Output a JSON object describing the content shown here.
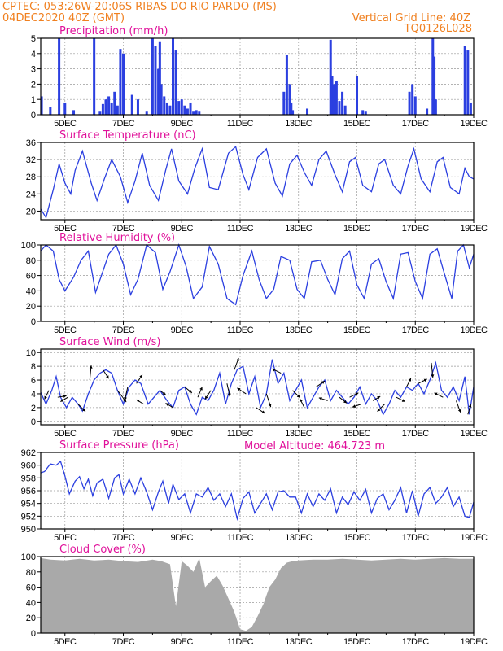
{
  "header": {
    "line1": "CPTEC:   053:26W-20:06S   RIBAS DO RIO PARDO (MS)",
    "line2_left": "04DEC2020 40Z (GMT)",
    "line2_right": "Vertical Grid Line: 40Z",
    "line3_right": "TQ0126L028"
  },
  "model_altitude": "Model Altitude: 464.723 m",
  "x_ticks": [
    "5DEC",
    "7DEC",
    "9DEC",
    "11DEC",
    "13DEC",
    "15DEC",
    "17DEC",
    "19DEC"
  ],
  "x_tick_days": [
    5,
    7,
    9,
    11,
    13,
    15,
    17,
    19
  ],
  "x_range_days": [
    4.17,
    19.0
  ],
  "colors": {
    "line": "#2b3fe0",
    "bar": "#2b3fe0",
    "cloud": "#a9a9a9",
    "title": "#e0109a",
    "header": "#f08020"
  },
  "chart_data": [
    {
      "id": "precip",
      "type": "bar",
      "title": "Precipitation (mm/h)",
      "ylim": [
        0,
        5
      ],
      "yticks": [
        0,
        1,
        2,
        3,
        4,
        5
      ],
      "x_days": [
        4.2,
        4.5,
        4.8,
        5.0,
        5.3,
        6.0,
        6.2,
        6.3,
        6.4,
        6.5,
        6.6,
        6.7,
        6.8,
        6.9,
        7.0,
        7.3,
        7.5,
        7.8,
        8.0,
        8.1,
        8.2,
        8.25,
        8.3,
        8.4,
        8.5,
        8.6,
        8.7,
        8.8,
        8.9,
        9.0,
        9.1,
        9.2,
        9.3,
        9.4,
        9.5,
        9.6,
        12.5,
        12.6,
        12.7,
        12.75,
        12.8,
        13.3,
        14.1,
        14.15,
        14.2,
        14.3,
        14.4,
        14.5,
        14.6,
        15.0,
        15.2,
        15.3,
        16.8,
        16.9,
        17.0,
        17.4,
        17.6,
        17.65,
        17.7,
        18.7,
        18.8,
        18.9
      ],
      "values": [
        1.2,
        0.5,
        5.0,
        0.8,
        0.3,
        5.0,
        0.2,
        0.7,
        1.0,
        1.2,
        0.8,
        1.5,
        0.6,
        4.3,
        4.0,
        1.3,
        1.0,
        0.2,
        5.0,
        4.5,
        3.0,
        4.8,
        2.0,
        1.2,
        0.8,
        0.6,
        5.0,
        4.2,
        0.9,
        1.0,
        0.6,
        0.4,
        0.8,
        0.2,
        0.3,
        0.2,
        1.5,
        3.9,
        2.0,
        0.8,
        0.3,
        0.4,
        4.9,
        2.5,
        2.0,
        2.2,
        0.9,
        1.5,
        0.6,
        2.5,
        0.3,
        0.2,
        1.5,
        2.0,
        1.2,
        0.4,
        5.0,
        3.8,
        1.0,
        4.5,
        4.2,
        0.8
      ]
    },
    {
      "id": "temp",
      "type": "line",
      "title": "Surface Temperature (nC)",
      "ylim": [
        18,
        36
      ],
      "yticks": [
        20,
        24,
        28,
        32,
        36
      ],
      "x": [
        4.17,
        4.35,
        4.6,
        4.8,
        5.0,
        5.2,
        5.35,
        5.6,
        5.9,
        6.1,
        6.35,
        6.6,
        6.9,
        7.15,
        7.4,
        7.65,
        7.9,
        8.2,
        8.45,
        8.65,
        8.9,
        9.2,
        9.45,
        9.7,
        9.95,
        10.25,
        10.6,
        10.85,
        11.1,
        11.3,
        11.6,
        11.9,
        12.2,
        12.45,
        12.7,
        12.95,
        13.2,
        13.45,
        13.7,
        13.95,
        14.25,
        14.5,
        14.75,
        14.95,
        15.2,
        15.5,
        15.75,
        15.95,
        16.25,
        16.5,
        16.75,
        16.95,
        17.2,
        17.5,
        17.75,
        17.95,
        18.2,
        18.5,
        18.7,
        18.85,
        19.0
      ],
      "values": [
        20.5,
        18.5,
        25.0,
        31.0,
        26.5,
        24.0,
        29.5,
        34.0,
        26.5,
        22.5,
        27.5,
        32.0,
        28.0,
        22.0,
        27.0,
        33.5,
        26.0,
        22.5,
        29.5,
        34.5,
        27.0,
        24.0,
        30.0,
        34.5,
        25.5,
        25.0,
        33.5,
        35.0,
        28.5,
        25.0,
        32.5,
        34.5,
        26.5,
        23.5,
        31.0,
        33.0,
        29.0,
        26.0,
        32.0,
        34.0,
        28.5,
        24.5,
        31.5,
        32.5,
        26.0,
        24.5,
        31.0,
        32.0,
        26.0,
        24.0,
        30.5,
        34.5,
        27.5,
        24.5,
        31.5,
        32.5,
        25.5,
        24.0,
        30.0,
        28.0,
        27.5
      ]
    },
    {
      "id": "rh",
      "type": "line",
      "title": "Relative Humidity (%)",
      "ylim": [
        0,
        100
      ],
      "yticks": [
        0,
        20,
        40,
        60,
        80,
        100
      ],
      "x": [
        4.17,
        4.35,
        4.6,
        4.8,
        5.0,
        5.3,
        5.55,
        5.8,
        6.05,
        6.25,
        6.5,
        6.75,
        7.0,
        7.25,
        7.5,
        7.8,
        8.1,
        8.35,
        8.6,
        8.9,
        9.15,
        9.4,
        9.7,
        9.95,
        10.25,
        10.55,
        10.85,
        11.1,
        11.4,
        11.65,
        11.9,
        12.15,
        12.4,
        12.7,
        12.95,
        13.2,
        13.45,
        13.75,
        14.0,
        14.25,
        14.5,
        14.75,
        15.0,
        15.25,
        15.5,
        15.75,
        16.0,
        16.25,
        16.5,
        16.75,
        17.0,
        17.25,
        17.5,
        17.75,
        18.0,
        18.25,
        18.45,
        18.65,
        18.85,
        19.0
      ],
      "values": [
        92,
        100,
        92,
        55,
        40,
        58,
        80,
        92,
        38,
        60,
        88,
        100,
        75,
        35,
        55,
        100,
        90,
        42,
        65,
        100,
        72,
        30,
        45,
        98,
        75,
        30,
        22,
        60,
        92,
        55,
        30,
        42,
        85,
        80,
        42,
        30,
        78,
        80,
        55,
        35,
        82,
        92,
        48,
        30,
        75,
        82,
        52,
        30,
        88,
        90,
        52,
        30,
        88,
        95,
        62,
        30,
        92,
        100,
        70,
        88
      ]
    },
    {
      "id": "wind",
      "type": "line",
      "title": "Surface Wind (m/s)",
      "ylim": [
        -0.5,
        10.5
      ],
      "yticks": [
        0,
        2,
        4,
        6,
        8,
        10
      ],
      "x": [
        4.17,
        4.35,
        4.55,
        4.7,
        4.85,
        5.05,
        5.25,
        5.45,
        5.6,
        5.8,
        6.0,
        6.2,
        6.4,
        6.6,
        6.8,
        7.0,
        7.2,
        7.4,
        7.6,
        7.85,
        8.05,
        8.25,
        8.5,
        8.7,
        8.9,
        9.1,
        9.3,
        9.5,
        9.7,
        9.9,
        10.1,
        10.3,
        10.5,
        10.7,
        10.9,
        11.1,
        11.3,
        11.5,
        11.7,
        11.9,
        12.1,
        12.3,
        12.5,
        12.7,
        12.9,
        13.1,
        13.3,
        13.5,
        13.7,
        13.9,
        14.1,
        14.3,
        14.5,
        14.7,
        14.9,
        15.1,
        15.3,
        15.5,
        15.7,
        15.9,
        16.1,
        16.3,
        16.5,
        16.7,
        16.9,
        17.1,
        17.3,
        17.5,
        17.7,
        17.9,
        18.1,
        18.3,
        18.5,
        18.7,
        18.85,
        19.0
      ],
      "values": [
        4.2,
        2.5,
        4.5,
        6.5,
        3.5,
        2.0,
        3.5,
        2.5,
        1.5,
        4.0,
        6.0,
        7.0,
        7.5,
        7.0,
        4.5,
        2.5,
        5.0,
        6.0,
        5.5,
        2.5,
        3.5,
        4.5,
        3.0,
        2.0,
        4.5,
        5.0,
        2.5,
        1.0,
        3.5,
        3.0,
        4.5,
        7.0,
        2.5,
        5.5,
        7.5,
        8.0,
        4.0,
        6.5,
        2.0,
        4.0,
        9.0,
        5.5,
        7.0,
        3.0,
        4.5,
        6.0,
        2.0,
        3.5,
        5.0,
        6.0,
        3.0,
        4.5,
        3.5,
        2.5,
        3.5,
        5.0,
        2.5,
        4.0,
        3.0,
        1.0,
        2.5,
        4.5,
        3.5,
        5.0,
        4.5,
        5.5,
        4.0,
        6.0,
        8.5,
        4.5,
        3.5,
        5.0,
        3.0,
        6.5,
        1.0,
        5.0
      ]
    },
    {
      "id": "pres",
      "type": "line",
      "title": "Surface Pressure (hPa)",
      "ylim": [
        950,
        962
      ],
      "yticks": [
        950,
        952,
        954,
        956,
        958,
        960,
        962
      ],
      "x": [
        4.17,
        4.3,
        4.5,
        4.7,
        4.85,
        5.0,
        5.15,
        5.35,
        5.5,
        5.65,
        5.8,
        5.95,
        6.1,
        6.3,
        6.5,
        6.7,
        6.85,
        7.0,
        7.2,
        7.4,
        7.6,
        7.8,
        8.0,
        8.2,
        8.35,
        8.55,
        8.7,
        8.9,
        9.1,
        9.3,
        9.5,
        9.7,
        9.9,
        10.1,
        10.3,
        10.5,
        10.7,
        10.9,
        11.1,
        11.3,
        11.5,
        11.7,
        11.9,
        12.1,
        12.3,
        12.5,
        12.7,
        12.9,
        13.1,
        13.3,
        13.5,
        13.7,
        13.9,
        14.1,
        14.3,
        14.5,
        14.7,
        14.9,
        15.1,
        15.3,
        15.5,
        15.7,
        15.9,
        16.1,
        16.3,
        16.5,
        16.7,
        16.9,
        17.1,
        17.3,
        17.5,
        17.7,
        17.9,
        18.1,
        18.3,
        18.5,
        18.7,
        18.85,
        19.0
      ],
      "values": [
        958.8,
        959.0,
        960.2,
        960.0,
        960.6,
        958.3,
        955.5,
        957.5,
        958.2,
        956.3,
        957.8,
        955.2,
        957.2,
        957.8,
        954.8,
        958.0,
        958.5,
        955.5,
        957.8,
        955.5,
        958.0,
        955.8,
        953.0,
        955.8,
        957.5,
        954.0,
        957.0,
        954.6,
        955.5,
        952.5,
        955.5,
        955.0,
        956.5,
        954.5,
        955.5,
        953.5,
        955.5,
        951.6,
        954.8,
        955.8,
        952.5,
        954.0,
        955.5,
        953.0,
        955.8,
        956.0,
        955.0,
        955.0,
        952.5,
        955.5,
        953.5,
        955.5,
        954.5,
        956.3,
        952.5,
        955.0,
        953.8,
        955.8,
        954.5,
        956.2,
        952.5,
        954.8,
        955.5,
        953.0,
        954.5,
        956.5,
        952.5,
        956.0,
        952.0,
        955.5,
        956.5,
        954.0,
        955.0,
        956.5,
        953.5,
        955.0,
        952.0,
        951.8,
        954.2
      ]
    },
    {
      "id": "cloud",
      "type": "area",
      "title": "Cloud Cover (%)",
      "ylim": [
        0,
        100
      ],
      "yticks": [
        0,
        20,
        40,
        60,
        80,
        100
      ],
      "x": [
        4.17,
        4.5,
        5.0,
        5.5,
        6.0,
        6.5,
        7.0,
        7.5,
        8.0,
        8.3,
        8.6,
        8.8,
        9.0,
        9.2,
        9.4,
        9.6,
        9.8,
        10.0,
        10.2,
        10.4,
        10.6,
        10.8,
        11.0,
        11.2,
        11.4,
        11.6,
        11.8,
        12.0,
        12.2,
        12.4,
        12.6,
        12.8,
        13.0,
        13.5,
        14.0,
        14.5,
        15.0,
        15.5,
        16.0,
        16.5,
        17.0,
        17.5,
        18.0,
        18.5,
        19.0
      ],
      "values": [
        98,
        96,
        95,
        97,
        95,
        96,
        94,
        93,
        96,
        94,
        90,
        35,
        94,
        88,
        80,
        98,
        60,
        68,
        75,
        62,
        45,
        28,
        5,
        3,
        8,
        22,
        38,
        60,
        70,
        85,
        92,
        94,
        95,
        96,
        96,
        97,
        96,
        95,
        96,
        97,
        96,
        97,
        98,
        97,
        97
      ]
    }
  ],
  "wind_arrows": [
    {
      "d": 4.45,
      "u": -0.3,
      "v": -0.6
    },
    {
      "d": 4.75,
      "u": 0.6,
      "v": 0.1
    },
    {
      "d": 5.1,
      "u": -0.5,
      "v": -0.3
    },
    {
      "d": 5.45,
      "u": 0.5,
      "v": -0.5
    },
    {
      "d": 5.85,
      "u": 0.1,
      "v": 1.0
    },
    {
      "d": 6.3,
      "u": 0.4,
      "v": -0.6
    },
    {
      "d": 6.8,
      "u": 0.6,
      "v": -0.8
    },
    {
      "d": 7.15,
      "u": -0.2,
      "v": -0.9
    },
    {
      "d": 7.45,
      "u": 0.4,
      "v": 0.6
    },
    {
      "d": 7.7,
      "u": -0.5,
      "v": 0.3
    },
    {
      "d": 8.25,
      "u": 0.4,
      "v": -0.3
    },
    {
      "d": 8.7,
      "u": -0.5,
      "v": 0.3
    },
    {
      "d": 9.1,
      "u": 0.5,
      "v": -0.4
    },
    {
      "d": 9.55,
      "u": 0.3,
      "v": 0.7
    },
    {
      "d": 10.0,
      "u": -0.4,
      "v": -0.6
    },
    {
      "d": 10.55,
      "u": 0.2,
      "v": -0.9
    },
    {
      "d": 10.8,
      "u": 0.3,
      "v": 0.8
    },
    {
      "d": 11.2,
      "u": -0.6,
      "v": 0.4
    },
    {
      "d": 11.55,
      "u": 0.6,
      "v": -0.4
    },
    {
      "d": 11.9,
      "u": 0.3,
      "v": -0.9
    },
    {
      "d": 12.4,
      "u": -0.6,
      "v": 0.3
    },
    {
      "d": 12.8,
      "u": 0.5,
      "v": -0.5
    },
    {
      "d": 13.2,
      "u": -0.3,
      "v": 0.6
    },
    {
      "d": 13.6,
      "u": 0.6,
      "v": 0.4
    },
    {
      "d": 14.0,
      "u": -0.6,
      "v": 0.2
    },
    {
      "d": 14.4,
      "u": 0.5,
      "v": -0.4
    },
    {
      "d": 14.75,
      "u": 0.6,
      "v": 0.3
    },
    {
      "d": 15.15,
      "u": -0.6,
      "v": -0.2
    },
    {
      "d": 15.55,
      "u": 0.5,
      "v": 0.3
    },
    {
      "d": 15.95,
      "u": -0.5,
      "v": -0.5
    },
    {
      "d": 16.35,
      "u": 0.6,
      "v": -0.3
    },
    {
      "d": 16.7,
      "u": 0.3,
      "v": 0.6
    },
    {
      "d": 17.1,
      "u": 0.6,
      "v": 0.3
    },
    {
      "d": 17.55,
      "u": 0.1,
      "v": -1.0
    },
    {
      "d": 17.95,
      "u": -0.6,
      "v": 0.3
    },
    {
      "d": 18.4,
      "u": 0.3,
      "v": -0.8
    },
    {
      "d": 18.8,
      "u": 0.2,
      "v": 0.7
    }
  ]
}
